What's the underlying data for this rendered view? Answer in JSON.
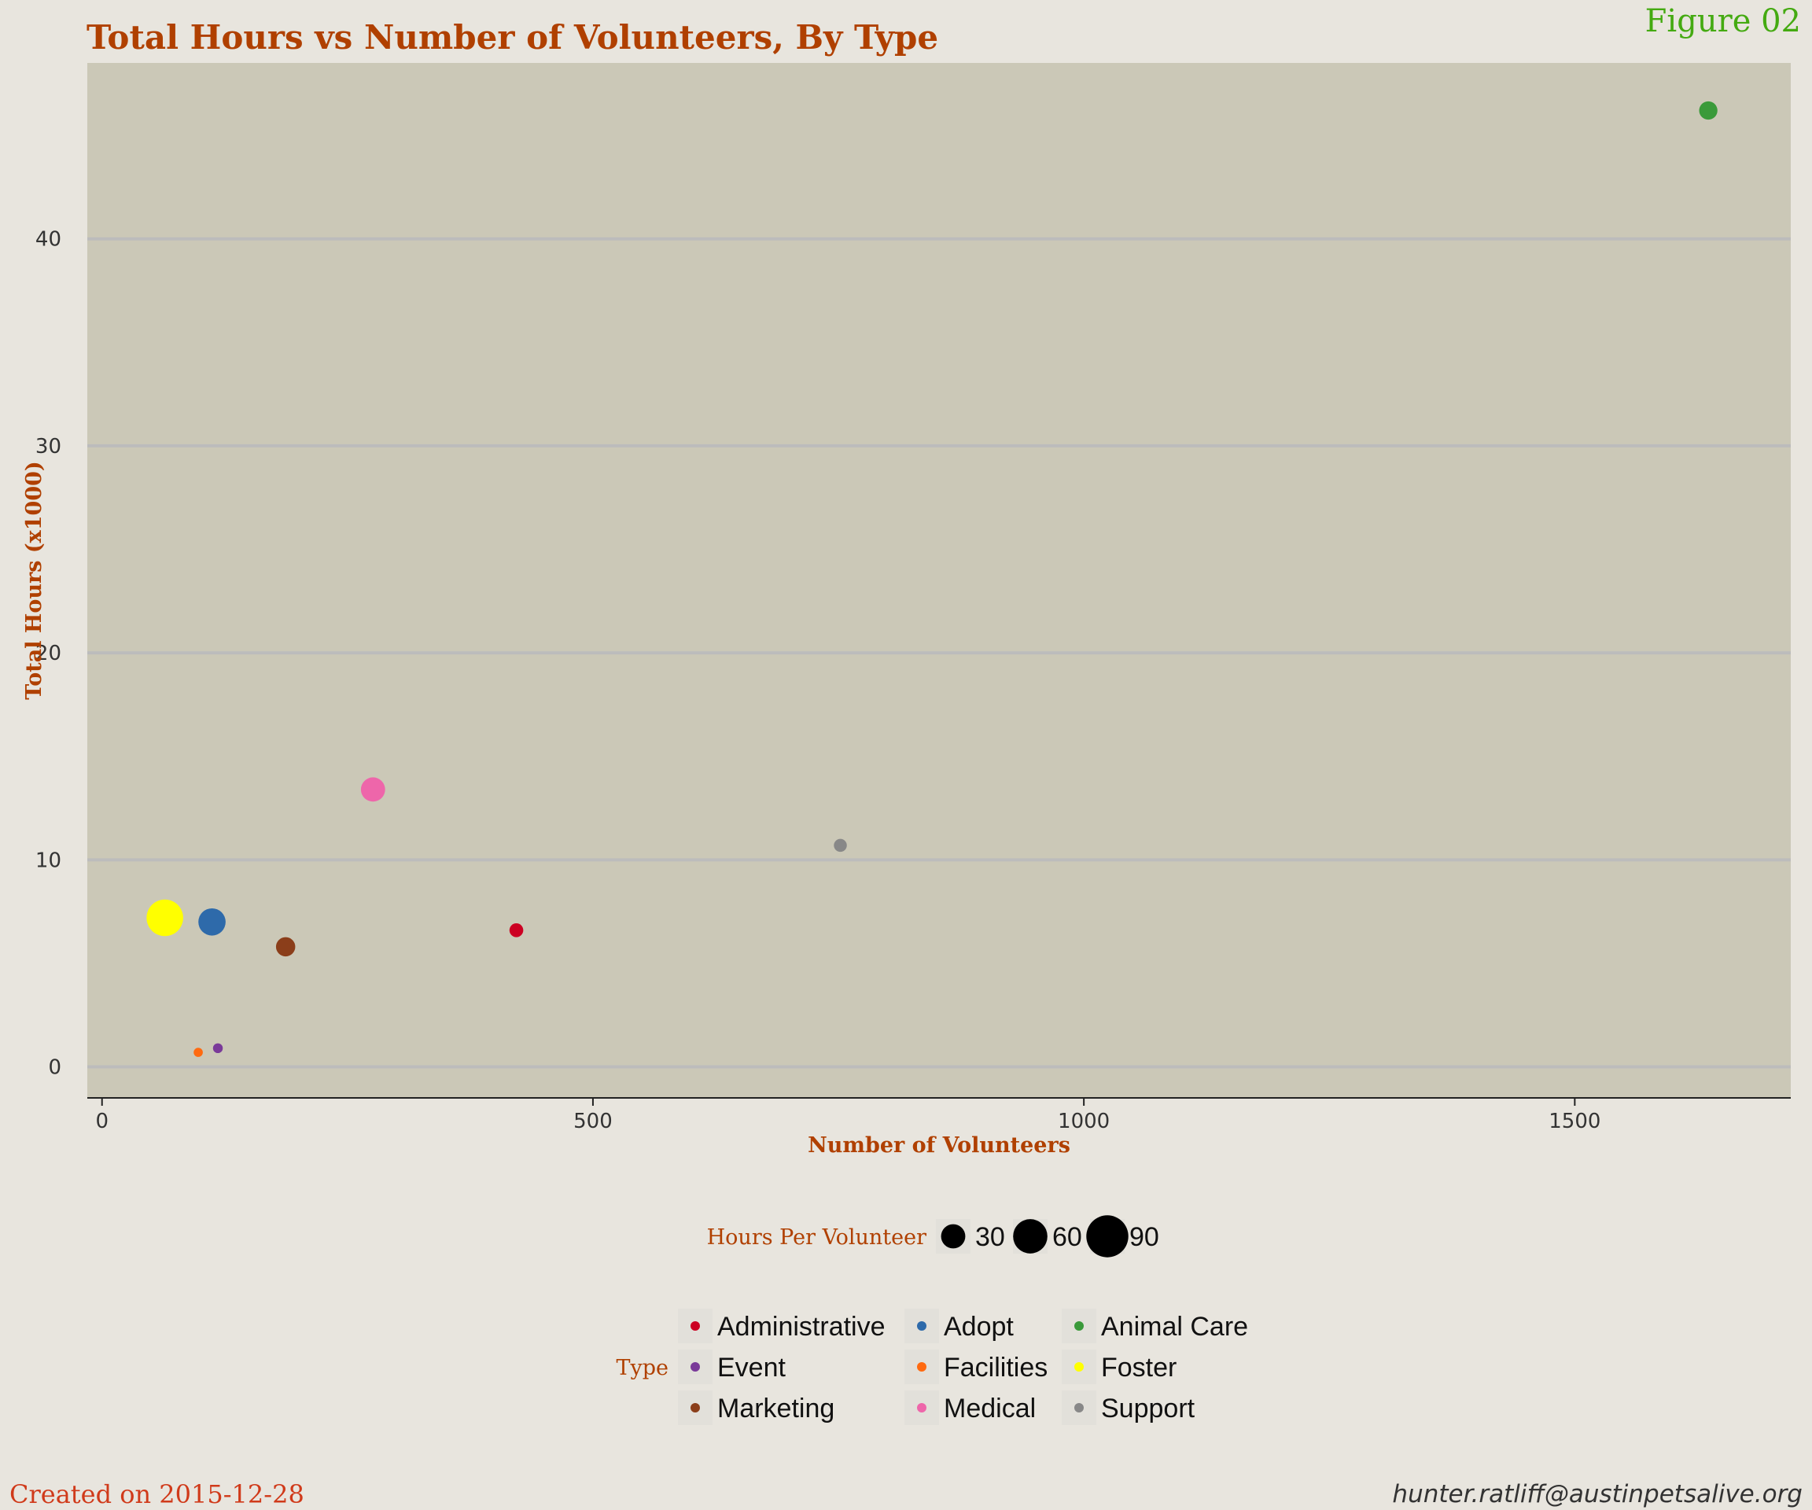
{
  "header": {
    "title": "Total Hours vs Number of Volunteers, By Type",
    "figure_label": "Figure 02"
  },
  "footer": {
    "created": "Created on 2015-12-28",
    "email": "hunter.ratliff@austinpetsalive.org"
  },
  "chart_data": {
    "type": "scatter",
    "xlabel": "Number of Volunteers",
    "ylabel": "Total Hours (x1000)",
    "xlim": [
      -15,
      1720
    ],
    "ylim": [
      -1.5,
      48.5
    ],
    "xticks": [
      0,
      500,
      1000,
      1500
    ],
    "yticks": [
      0,
      10,
      20,
      30,
      40
    ],
    "grid": "horizontal",
    "plot_background": "#cbc8b7",
    "gridline_color": "#bcbcbc",
    "size_legend": {
      "title": "Hours Per Volunteer",
      "values": [
        30,
        60,
        90
      ]
    },
    "color_legend": {
      "title": "Type",
      "placement": "bottom"
    },
    "series": [
      {
        "name": "Administrative",
        "color": "#cc0022",
        "x": 422,
        "y": 6.6,
        "hours_per_volunteer": 16
      },
      {
        "name": "Adopt",
        "color": "#2e6aaa",
        "x": 112,
        "y": 7.0,
        "hours_per_volunteer": 62
      },
      {
        "name": "Animal Care",
        "color": "#3a9a3a",
        "x": 1636,
        "y": 46.2,
        "hours_per_volunteer": 28
      },
      {
        "name": "Event",
        "color": "#7a3a99",
        "x": 118,
        "y": 0.9,
        "hours_per_volunteer": 8
      },
      {
        "name": "Facilities",
        "color": "#ff6a10",
        "x": 98,
        "y": 0.7,
        "hours_per_volunteer": 7
      },
      {
        "name": "Foster",
        "color": "#ffff00",
        "x": 64,
        "y": 7.2,
        "hours_per_volunteer": 112
      },
      {
        "name": "Marketing",
        "color": "#8b3e1a",
        "x": 187,
        "y": 5.8,
        "hours_per_volunteer": 31
      },
      {
        "name": "Medical",
        "color": "#ee66aa",
        "x": 276,
        "y": 13.4,
        "hours_per_volunteer": 49
      },
      {
        "name": "Support",
        "color": "#888888",
        "x": 752,
        "y": 10.7,
        "hours_per_volunteer": 14
      }
    ]
  }
}
